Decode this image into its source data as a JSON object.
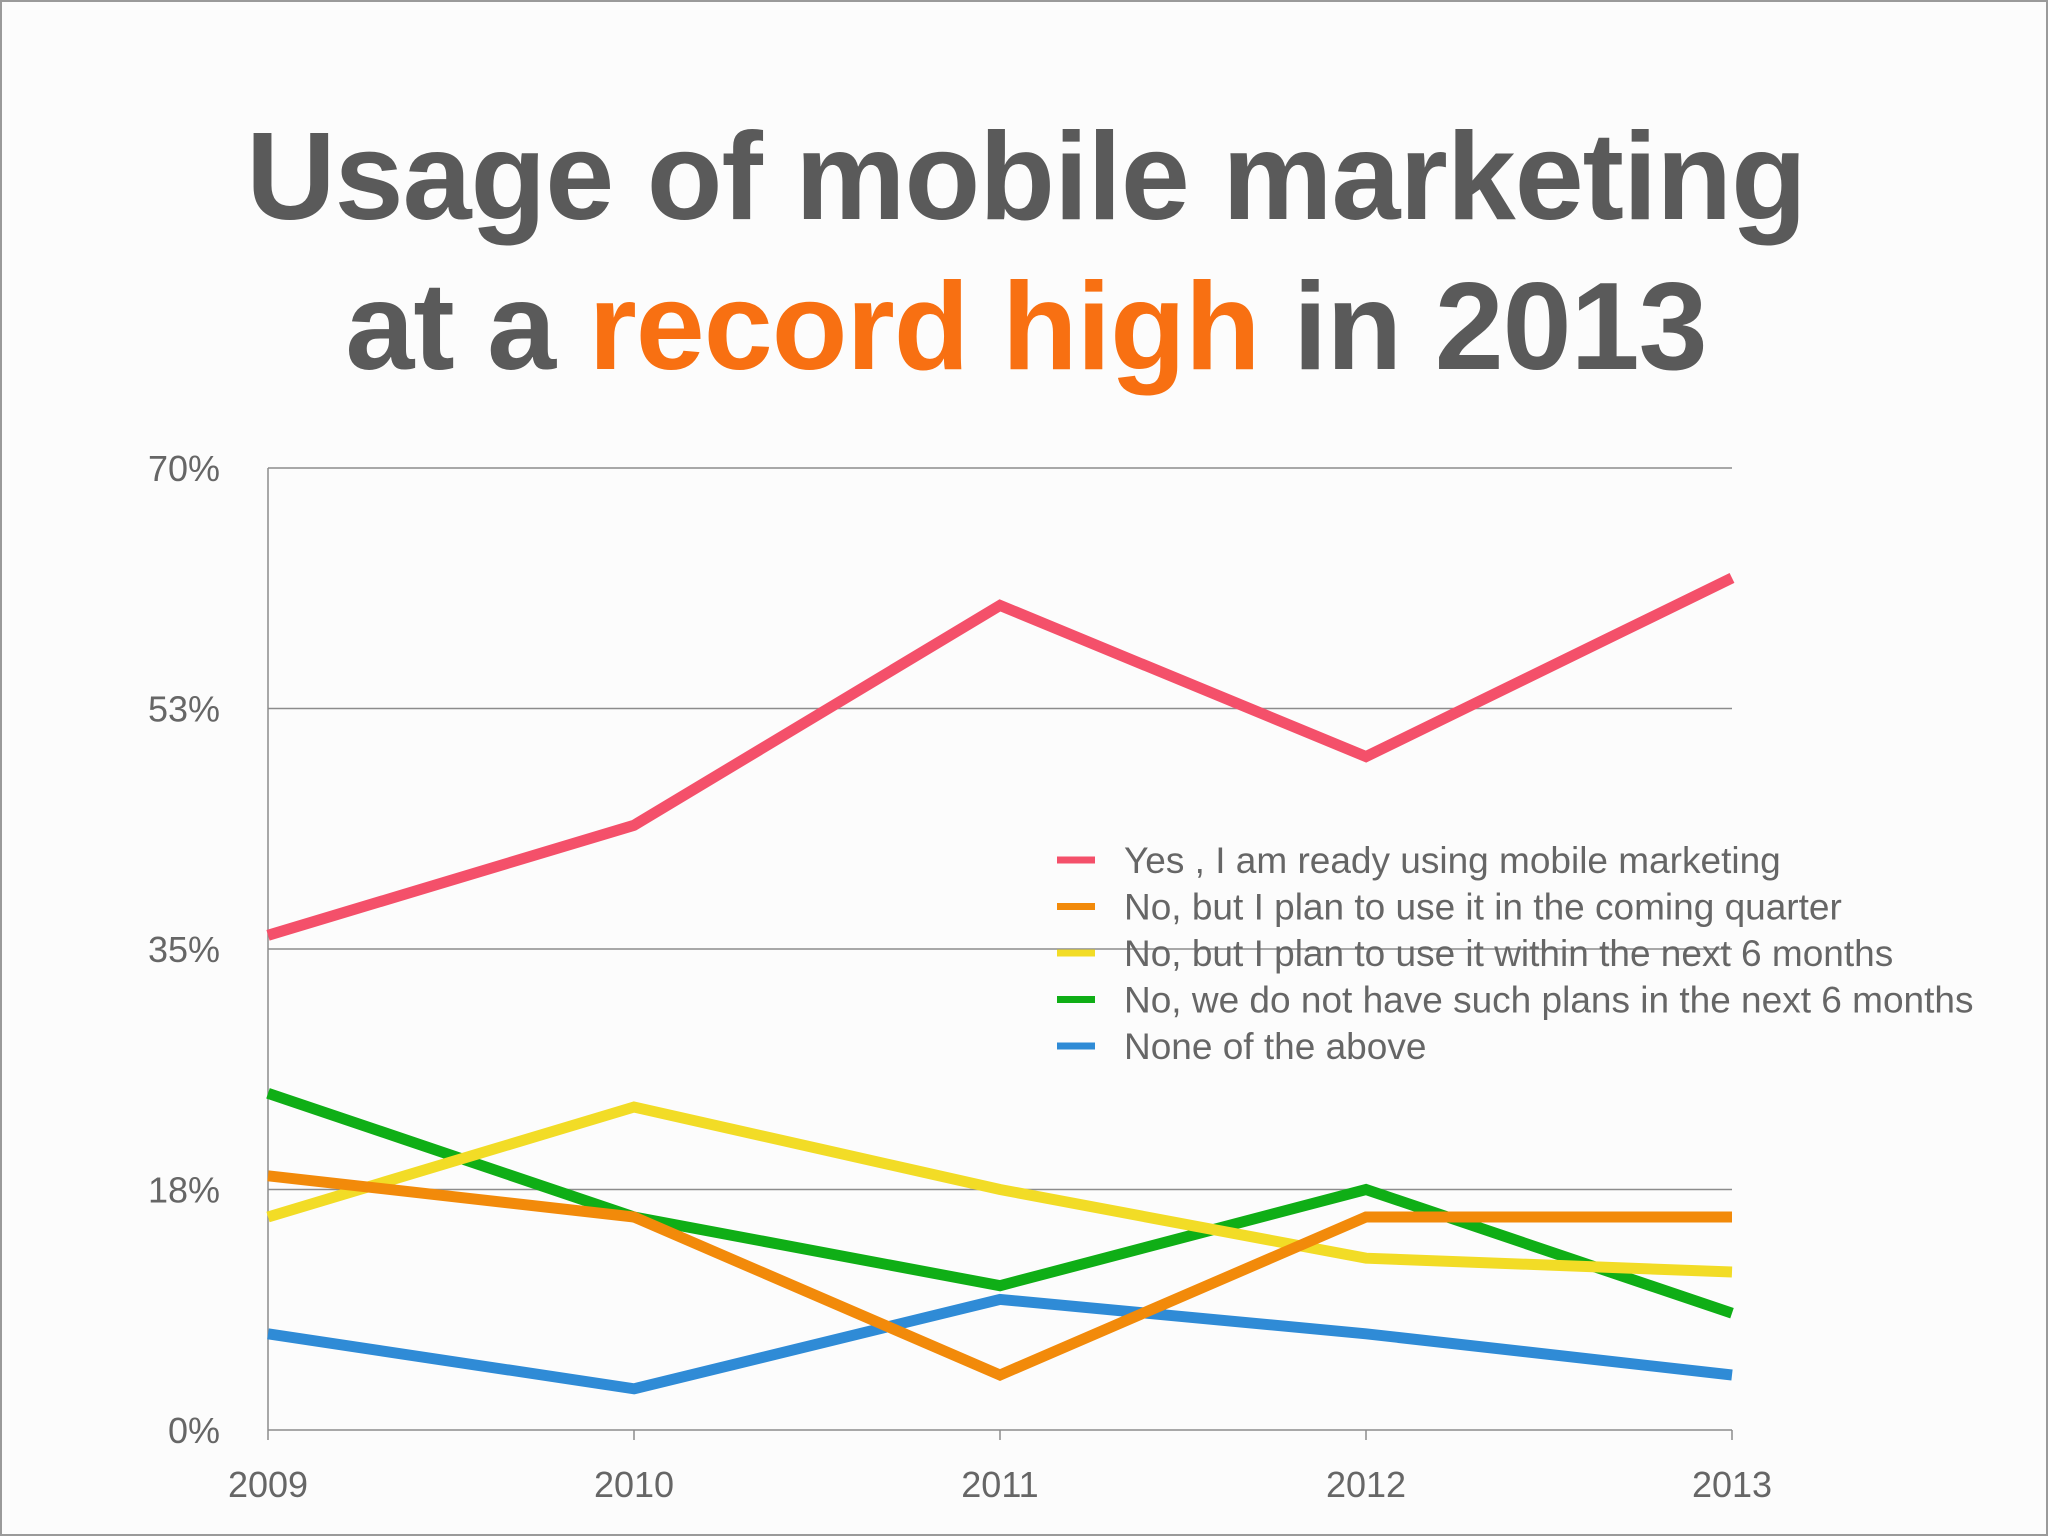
{
  "title": {
    "line1": "Usage of mobile marketing",
    "line2_pre": "at a ",
    "line2_highlight": "record high",
    "line2_post": " in 2013"
  },
  "colors": {
    "title_text": "#5a5a5a",
    "title_highlight": "#f87012"
  },
  "chart_data": {
    "type": "line",
    "x": [
      "2009",
      "2010",
      "2011",
      "2012",
      "2013"
    ],
    "ylim": [
      0,
      70
    ],
    "yticks": [
      "0%",
      "18%",
      "35%",
      "53%",
      "70%"
    ],
    "grid": "horizontal",
    "legend_position": "right",
    "series": [
      {
        "name": "Yes , I am ready using mobile marketing",
        "color": "#f4506a",
        "values": [
          36,
          44,
          60,
          49,
          62
        ]
      },
      {
        "name": "No, but I plan to use it in the coming quarter",
        "color": "#f28a0a",
        "values": [
          18.5,
          15.5,
          4,
          15.5,
          15.5
        ]
      },
      {
        "name": "No, but I plan to use it within the next 6 months",
        "color": "#f2dc26",
        "values": [
          15.5,
          23.5,
          17.5,
          12.5,
          11.5
        ]
      },
      {
        "name": "No, we do not have such plans in the next 6 months",
        "color": "#0fae16",
        "values": [
          24.5,
          15.5,
          10.5,
          17.5,
          8.5
        ]
      },
      {
        "name": "None of the above",
        "color": "#2f8bd6",
        "values": [
          7,
          3,
          9.5,
          7,
          4
        ]
      }
    ]
  }
}
